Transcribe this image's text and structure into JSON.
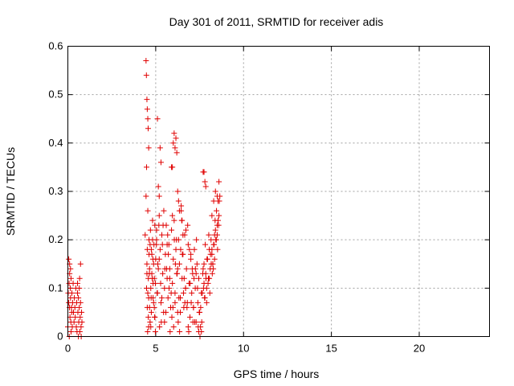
{
  "chart_data": {
    "type": "scatter",
    "title": "Day 301 of 2011, SRMTID for receiver adis",
    "xlabel": "GPS time / hours",
    "ylabel": "SRMTID / TECUs",
    "xlim": [
      0,
      24
    ],
    "ylim": [
      0,
      0.6
    ],
    "xticks": [
      "0",
      "5",
      "10",
      "15",
      "20"
    ],
    "yticks": [
      "0",
      "0.1",
      "0.2",
      "0.3",
      "0.4",
      "0.5",
      "0.6"
    ],
    "grid": true,
    "marker": "+",
    "color": "#e00000",
    "x": [
      0.0,
      0.02,
      0.05,
      0.07,
      0.09,
      0.1,
      0.12,
      0.14,
      0.15,
      0.17,
      0.18,
      0.2,
      0.22,
      0.23,
      0.25,
      0.27,
      0.3,
      0.32,
      0.35,
      0.37,
      0.4,
      0.42,
      0.45,
      0.48,
      0.5,
      0.52,
      0.55,
      0.57,
      0.6,
      0.62,
      0.65,
      0.67,
      0.7,
      0.72,
      0.75,
      0.78,
      0.8,
      0.05,
      0.1,
      0.15,
      0.55,
      0.65,
      0.72,
      0.08,
      0.18,
      0.6,
      0.68,
      0.76,
      4.4,
      4.45,
      4.48,
      4.5,
      4.52,
      4.55,
      4.58,
      4.6,
      4.62,
      4.65,
      4.68,
      4.7,
      4.72,
      4.75,
      4.78,
      4.8,
      4.82,
      4.85,
      4.88,
      4.9,
      4.92,
      4.95,
      4.98,
      5.0,
      5.05,
      5.1,
      5.15,
      5.2,
      5.25,
      5.3,
      5.35,
      5.4,
      5.45,
      5.5,
      5.55,
      5.6,
      5.65,
      5.7,
      5.75,
      5.8,
      5.85,
      5.9,
      5.95,
      6.0,
      6.05,
      6.1,
      6.15,
      6.2,
      6.25,
      6.3,
      6.35,
      6.4,
      6.45,
      6.5,
      6.55,
      6.6,
      6.65,
      6.7,
      6.75,
      6.8,
      6.85,
      6.9,
      6.95,
      7.0,
      7.05,
      7.1,
      7.15,
      7.2,
      7.25,
      7.3,
      7.35,
      7.4,
      7.45,
      7.5,
      7.55,
      7.6,
      7.65,
      7.7,
      7.75,
      7.8,
      7.85,
      7.9,
      7.95,
      8.0,
      8.05,
      8.1,
      8.15,
      8.2,
      8.25,
      8.3,
      8.35,
      8.4,
      8.45,
      8.5,
      8.55,
      8.6,
      4.5,
      4.55,
      4.6,
      4.65,
      4.75,
      4.85,
      4.95,
      5.05,
      5.2,
      5.35,
      5.5,
      5.65,
      5.8,
      5.95,
      6.1,
      6.25,
      6.4,
      6.55,
      6.7,
      6.85,
      7.0,
      7.15,
      7.3,
      7.45,
      7.6,
      7.75,
      7.9,
      8.05,
      8.2,
      8.35,
      8.5,
      4.48,
      4.58,
      4.68,
      4.78,
      4.88,
      4.98,
      5.12,
      5.28,
      5.42,
      5.58,
      5.72,
      5.88,
      6.02,
      6.18,
      6.32,
      6.48,
      6.62,
      6.78,
      6.92,
      7.08,
      7.22,
      7.38,
      7.52,
      7.68,
      7.82,
      7.98,
      8.12,
      8.28,
      8.42,
      8.58,
      4.52,
      4.62,
      4.72,
      4.82,
      4.92,
      5.08,
      5.22,
      5.38,
      5.52,
      5.68,
      5.82,
      5.98,
      6.12,
      6.28,
      6.42,
      6.58,
      6.72,
      6.88,
      7.02,
      7.18,
      7.32,
      7.48,
      7.62,
      7.78,
      7.92,
      8.08,
      8.22,
      8.38,
      8.52,
      4.54,
      4.64,
      4.74,
      4.84,
      4.94,
      5.04,
      5.18,
      5.32,
      5.46,
      5.62,
      5.76,
      5.92,
      6.06,
      6.22,
      6.36,
      6.52,
      6.66,
      6.82,
      6.96,
      7.12,
      7.26,
      7.42,
      7.56,
      7.72,
      7.86,
      8.02,
      8.16,
      8.32,
      8.46,
      8.62,
      4.45,
      4.47,
      4.5,
      4.52,
      4.55,
      4.57,
      4.6,
      5.25,
      5.3,
      5.95,
      6.0,
      6.05,
      6.1,
      6.15,
      6.2,
      6.25,
      6.3,
      5.9,
      6.35,
      7.75,
      7.8,
      7.85,
      8.5,
      8.55,
      8.6,
      8.65,
      5.1,
      5.15,
      5.2,
      6.45,
      6.5,
      7.7,
      8.2,
      8.3,
      8.4
    ],
    "y": [
      0.02,
      0.09,
      0.07,
      0.11,
      0.06,
      0.13,
      0.04,
      0.1,
      0.08,
      0.03,
      0.12,
      0.06,
      0.05,
      0.09,
      0.02,
      0.07,
      0.11,
      0.05,
      0.03,
      0.08,
      0.06,
      0.04,
      0.1,
      0.02,
      0.07,
      0.01,
      0.09,
      0.05,
      0.08,
      0.03,
      0.06,
      0.12,
      0.04,
      0.07,
      0.02,
      0.05,
      0.03,
      0.16,
      0.15,
      0.14,
      0.11,
      0.1,
      0.15,
      0.0,
      0.01,
      0.0,
      0.01,
      0.0,
      0.21,
      0.29,
      0.35,
      0.15,
      0.18,
      0.26,
      0.12,
      0.08,
      0.2,
      0.14,
      0.03,
      0.22,
      0.1,
      0.05,
      0.17,
      0.12,
      0.24,
      0.08,
      0.15,
      0.19,
      0.06,
      0.23,
      0.11,
      0.16,
      0.2,
      0.09,
      0.14,
      0.25,
      0.18,
      0.07,
      0.21,
      0.13,
      0.05,
      0.1,
      0.17,
      0.23,
      0.12,
      0.08,
      0.19,
      0.14,
      0.06,
      0.22,
      0.11,
      0.16,
      0.24,
      0.09,
      0.18,
      0.13,
      0.05,
      0.2,
      0.15,
      0.08,
      0.26,
      0.12,
      0.17,
      0.06,
      0.21,
      0.1,
      0.14,
      0.07,
      0.19,
      0.11,
      0.04,
      0.16,
      0.09,
      0.13,
      0.06,
      0.18,
      0.1,
      0.03,
      0.15,
      0.07,
      0.12,
      0.05,
      0.02,
      0.01,
      0.09,
      0.14,
      0.11,
      0.08,
      0.13,
      0.1,
      0.16,
      0.12,
      0.18,
      0.14,
      0.2,
      0.17,
      0.15,
      0.19,
      0.21,
      0.22,
      0.2,
      0.23,
      0.24,
      0.25,
      0.13,
      0.09,
      0.02,
      0.06,
      0.18,
      0.11,
      0.04,
      0.22,
      0.16,
      0.08,
      0.03,
      0.19,
      0.12,
      0.25,
      0.07,
      0.14,
      0.05,
      0.21,
      0.1,
      0.02,
      0.17,
      0.06,
      0.13,
      0.01,
      0.09,
      0.15,
      0.07,
      0.12,
      0.18,
      0.16,
      0.21,
      0.1,
      0.04,
      0.19,
      0.13,
      0.07,
      0.01,
      0.15,
      0.11,
      0.23,
      0.05,
      0.17,
      0.09,
      0.02,
      0.2,
      0.08,
      0.24,
      0.12,
      0.06,
      0.18,
      0.14,
      0.03,
      0.1,
      0.0,
      0.13,
      0.19,
      0.11,
      0.17,
      0.14,
      0.2,
      0.23,
      0.06,
      0.17,
      0.02,
      0.2,
      0.12,
      0.09,
      0.02,
      0.19,
      0.14,
      0.21,
      0.01,
      0.06,
      0.15,
      0.03,
      0.18,
      0.09,
      0.22,
      0.01,
      0.07,
      0.12,
      0.2,
      0.05,
      0.03,
      0.08,
      0.16,
      0.09,
      0.13,
      0.24,
      0.18,
      0.01,
      0.13,
      0.08,
      0.16,
      0.04,
      0.19,
      0.23,
      0.03,
      0.26,
      0.14,
      0.1,
      0.04,
      0.2,
      0.13,
      0.01,
      0.17,
      0.07,
      0.23,
      0.11,
      0.03,
      0.14,
      0.02,
      0.06,
      0.1,
      0.12,
      0.21,
      0.15,
      0.19,
      0.26,
      0.28,
      0.57,
      0.54,
      0.49,
      0.47,
      0.45,
      0.43,
      0.39,
      0.39,
      0.36,
      0.35,
      0.4,
      0.42,
      0.39,
      0.41,
      0.38,
      0.3,
      0.28,
      0.35,
      0.26,
      0.34,
      0.32,
      0.31,
      0.29,
      0.28,
      0.32,
      0.29,
      0.45,
      0.31,
      0.29,
      0.27,
      0.24,
      0.34,
      0.25,
      0.28,
      0.3
    ]
  }
}
